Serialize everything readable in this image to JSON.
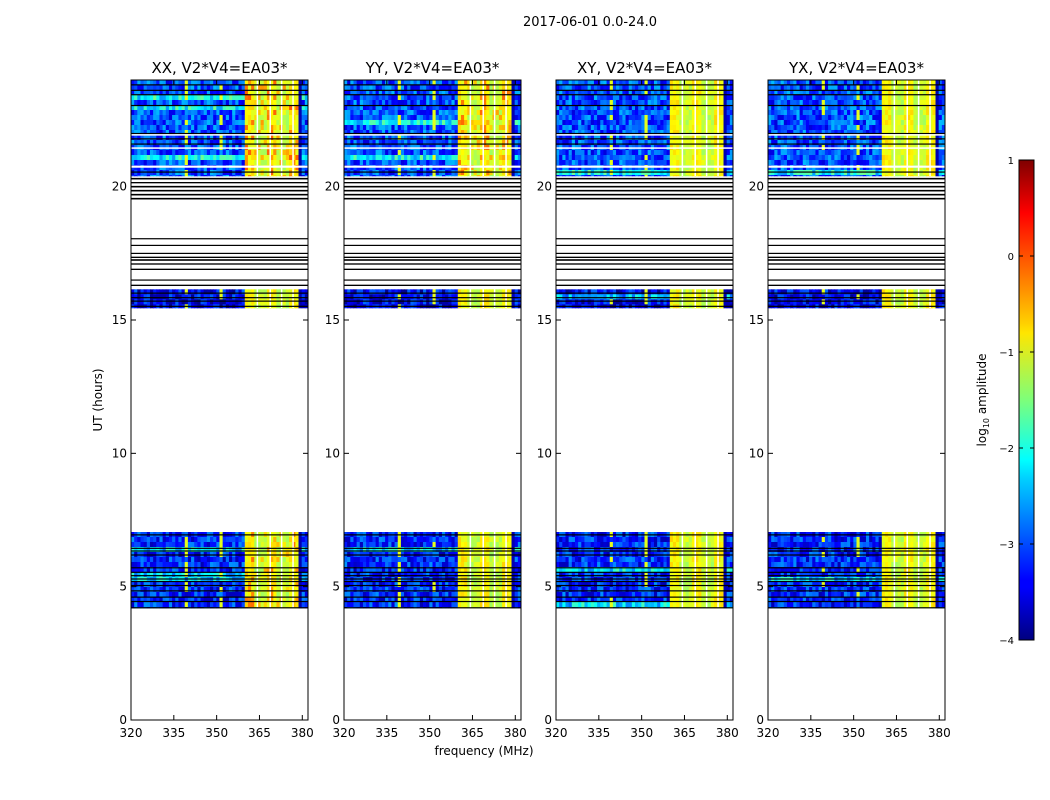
{
  "figure": {
    "suptitle": "2017-06-01 0.0-24.0",
    "ylabel": "UT (hours)",
    "xlabel": "frequency (MHz)"
  },
  "chart_data": {
    "type": "heatmap",
    "title": "2017-06-01 0.0-24.0",
    "xlabel": "frequency (MHz)",
    "ylabel": "UT (hours)",
    "xlim": [
      320,
      382
    ],
    "ylim": [
      0,
      24
    ],
    "x_ticks": [
      320,
      335,
      350,
      365,
      380
    ],
    "y_ticks": [
      0,
      5,
      10,
      15,
      20
    ],
    "panels": [
      {
        "title": "XX, V2*V4=EA03*",
        "pol": "XX",
        "strength": 1.0
      },
      {
        "title": "YY, V2*V4=EA03*",
        "pol": "YY",
        "strength": 0.9
      },
      {
        "title": "XY, V2*V4=EA03*",
        "pol": "XY",
        "strength": 0.7
      },
      {
        "title": "YX, V2*V4=EA03*",
        "pol": "YX",
        "strength": 0.7
      }
    ],
    "colorbar": {
      "label": "log10 amplitude",
      "label_main": "log",
      "label_sub": "10",
      "label_tail": " amplitude",
      "range": [
        -4,
        1
      ],
      "ticks": [
        -4,
        -3,
        -2,
        -1,
        0,
        1
      ],
      "tick_labels": [
        "−4",
        "−3",
        "−2",
        "−1",
        "0",
        "1"
      ],
      "colormap": "jet"
    },
    "data_blocks": [
      {
        "t_start": 4.2,
        "t_end": 7.05,
        "level": "medium"
      },
      {
        "t_start": 15.45,
        "t_end": 16.15,
        "level": "low"
      },
      {
        "t_start": 20.4,
        "t_end": 24.0,
        "level": "high"
      }
    ],
    "flagged_bands": [
      {
        "t": 4.22,
        "w": 0.02
      },
      {
        "t": 4.45,
        "w": 0.03
      },
      {
        "t": 4.62,
        "w": 0.02
      },
      {
        "t": 4.85,
        "w": 0.03
      },
      {
        "t": 5.05,
        "w": 0.03
      },
      {
        "t": 5.2,
        "w": 0.03
      },
      {
        "t": 5.3,
        "w": 0.02
      },
      {
        "t": 5.42,
        "w": 0.03
      },
      {
        "t": 5.55,
        "w": 0.02
      },
      {
        "t": 5.72,
        "w": 0.02
      },
      {
        "t": 6.2,
        "w": 0.02
      },
      {
        "t": 6.35,
        "w": 0.02
      },
      {
        "t": 6.45,
        "w": 0.02
      },
      {
        "t": 6.95,
        "w": 0.03
      },
      {
        "t": 15.52,
        "w": 0.03
      },
      {
        "t": 15.72,
        "w": 0.02
      },
      {
        "t": 15.85,
        "w": 0.02
      },
      {
        "t": 16.02,
        "w": 0.02
      },
      {
        "t": 16.3,
        "w": 0.05
      },
      {
        "t": 16.5,
        "w": 0.04
      },
      {
        "t": 16.9,
        "w": 0.05
      },
      {
        "t": 17.1,
        "w": 0.05
      },
      {
        "t": 17.25,
        "w": 0.06
      },
      {
        "t": 17.35,
        "w": 0.05
      },
      {
        "t": 17.5,
        "w": 0.04
      },
      {
        "t": 17.8,
        "w": 0.04
      },
      {
        "t": 18.05,
        "w": 0.04
      },
      {
        "t": 19.55,
        "w": 0.06
      },
      {
        "t": 19.7,
        "w": 0.06
      },
      {
        "t": 19.85,
        "w": 0.06
      },
      {
        "t": 20.0,
        "w": 0.06
      },
      {
        "t": 20.15,
        "w": 0.05
      },
      {
        "t": 20.3,
        "w": 0.06
      },
      {
        "t": 20.55,
        "w": 0.04
      },
      {
        "t": 21.6,
        "w": 0.04
      },
      {
        "t": 21.8,
        "w": 0.03
      },
      {
        "t": 22.0,
        "w": 0.03
      },
      {
        "t": 23.05,
        "w": 0.03
      },
      {
        "t": 23.45,
        "w": 0.04
      },
      {
        "t": 23.62,
        "w": 0.03
      },
      {
        "t": 23.82,
        "w": 0.04
      }
    ],
    "white_gaps": [
      {
        "t": 20.75,
        "w": 0.08
      },
      {
        "t": 21.45,
        "w": 0.05
      },
      {
        "t": 21.95,
        "w": 0.04
      }
    ],
    "rfi_channels": [
      339,
      352
    ]
  }
}
